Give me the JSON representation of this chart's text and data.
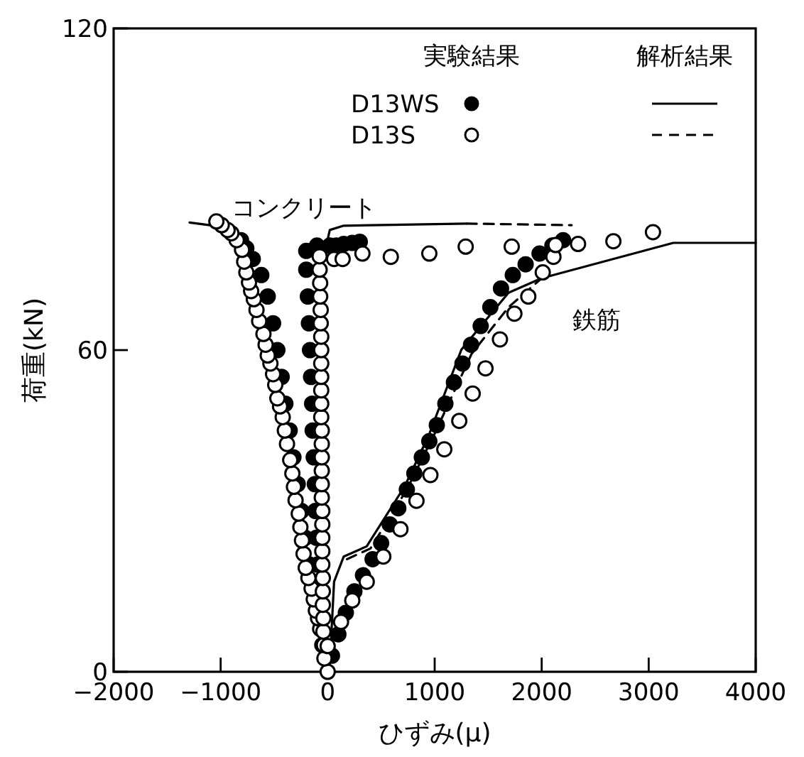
{
  "chart_data": {
    "type": "scatter",
    "xlabel": "ひずみ(μ)",
    "ylabel": "荷重(kN)",
    "xlim": [
      -2000,
      4000
    ],
    "ylim": [
      0,
      120
    ],
    "xticks": [
      -2000,
      -1000,
      0,
      1000,
      2000,
      3000,
      4000
    ],
    "yticks": [
      0,
      60,
      120
    ],
    "legend": "top right",
    "annotations": [
      "実験結果",
      "解析結果",
      "コンクリート",
      "鉄筋"
    ],
    "series": [
      {
        "name": "D13WS",
        "marker": "circle",
        "color": "#000000",
        "x": [
          -170,
          -210,
          -245,
          -280,
          -320,
          -355,
          -395,
          -430,
          -470,
          -510,
          -560,
          -620,
          -700,
          -760,
          -810,
          -50,
          -95,
          -105,
          -115,
          -120,
          -130,
          -140,
          -145,
          -155,
          -165,
          -175,
          -185,
          -200,
          -200,
          -100,
          20,
          80,
          150,
          230,
          300,
          40,
          100,
          170,
          250,
          330,
          420,
          500,
          580,
          660,
          740,
          810,
          880,
          950,
          1020,
          1100,
          1180,
          1260,
          1340,
          1430,
          1520,
          1620,
          1730,
          1850,
          1980,
          2100,
          2200
        ],
        "values": [
          20,
          25,
          30,
          35,
          40,
          45,
          50,
          55,
          60,
          65,
          70,
          74,
          77,
          79,
          80.5,
          5,
          20,
          25,
          30,
          35,
          40,
          45,
          50,
          55,
          60,
          65,
          70,
          75,
          78.5,
          79.5,
          79.5,
          79.5,
          79.8,
          80,
          80.2,
          3,
          7,
          11,
          15,
          18,
          21,
          24,
          27.5,
          30.5,
          34,
          37,
          40,
          43,
          46,
          50,
          54,
          57.5,
          61,
          64.5,
          68,
          71.5,
          74,
          76,
          78,
          79.5,
          80.5
        ]
      },
      {
        "name": "D13S",
        "marker": "circle",
        "color": "#ffffff",
        "x": [
          0,
          -70,
          -90,
          -110,
          -130,
          -150,
          -180,
          -205,
          -225,
          -240,
          -255,
          -270,
          -300,
          -315,
          -330,
          -350,
          -380,
          -400,
          -420,
          -445,
          -470,
          -490,
          -510,
          -535,
          -560,
          -580,
          -600,
          -640,
          -665,
          -690,
          -715,
          -735,
          -760,
          -780,
          -800,
          -850,
          -900,
          -935,
          -990,
          -1040,
          -30,
          -35,
          -40,
          -40,
          -45,
          -45,
          -45,
          -50,
          -50,
          -50,
          -50,
          -50,
          -55,
          -55,
          -55,
          -55,
          -55,
          -55,
          -60,
          -60,
          -60,
          -60,
          -60,
          -60,
          -60,
          -65,
          -65,
          -70,
          -70,
          -75,
          -75,
          60,
          140,
          325,
          590,
          950,
          1290,
          1720,
          2340,
          2670,
          3040,
          0,
          125,
          230,
          365,
          520,
          680,
          830,
          960,
          1090,
          1230,
          1355,
          1475,
          1610,
          1745,
          1875,
          2010,
          2110,
          2130
        ],
        "values": [
          0,
          8,
          10,
          11.4,
          13.5,
          15.5,
          17.5,
          19.4,
          22,
          24.5,
          27,
          29.5,
          32,
          34.5,
          37,
          39.5,
          42.5,
          45,
          47.5,
          49.5,
          51,
          53.5,
          55.5,
          57.5,
          59,
          61,
          63,
          65.4,
          67.5,
          69.5,
          71,
          72.6,
          74.5,
          76.5,
          78.7,
          80.5,
          81.8,
          82.4,
          83.3,
          84,
          2.5,
          5,
          7.5,
          10,
          12.5,
          15,
          17.5,
          20,
          22.5,
          25,
          27.5,
          30,
          32.5,
          35,
          37.5,
          40,
          42.5,
          45,
          47.5,
          50,
          52.5,
          55,
          57.5,
          60,
          62.5,
          65,
          67.5,
          70,
          72.5,
          75,
          77.5,
          77,
          77,
          78,
          77.4,
          78,
          79.3,
          79.3,
          79.8,
          80.3,
          82,
          4.8,
          9.3,
          13.3,
          16.8,
          21.5,
          26.6,
          31.9,
          36.7,
          41.5,
          46.8,
          51.9,
          56.6,
          62,
          66.8,
          70,
          74.5,
          77.4,
          79.6
        ]
      },
      {
        "type": "line",
        "line_style": "solid",
        "marker": "none",
        "color": "#000000",
        "x": [
          -1290,
          -1100
        ],
        "values": [
          83.8,
          83.3
        ]
      },
      {
        "type": "line",
        "line_style": "solid",
        "marker": "none",
        "color": "#000000",
        "x": [
          -30,
          20,
          150,
          1300
        ],
        "values": [
          78,
          82.4,
          83.2,
          83.6
        ]
      },
      {
        "type": "line",
        "line_style": "solid",
        "marker": "none",
        "color": "#000000",
        "x": [
          20,
          60,
          150,
          365,
          720,
          945,
          1250,
          1690,
          2000,
          3230,
          4000
        ],
        "values": [
          1.5,
          16.8,
          21.5,
          23.4,
          34.6,
          44.1,
          60.1,
          70.7,
          73.4,
          80,
          80
        ]
      },
      {
        "type": "line",
        "line_style": "dashed",
        "marker": "none",
        "color": "#000000",
        "x": [
          1300,
          2280
        ],
        "values": [
          83.6,
          83.3
        ]
      },
      {
        "type": "line",
        "line_style": "dashed",
        "marker": "none",
        "color": "#000000",
        "x": [
          180,
          400,
          740,
          990,
          1345,
          1690,
          2000
        ],
        "values": [
          21,
          23,
          34,
          44,
          59.3,
          68,
          73.4
        ]
      }
    ]
  }
}
